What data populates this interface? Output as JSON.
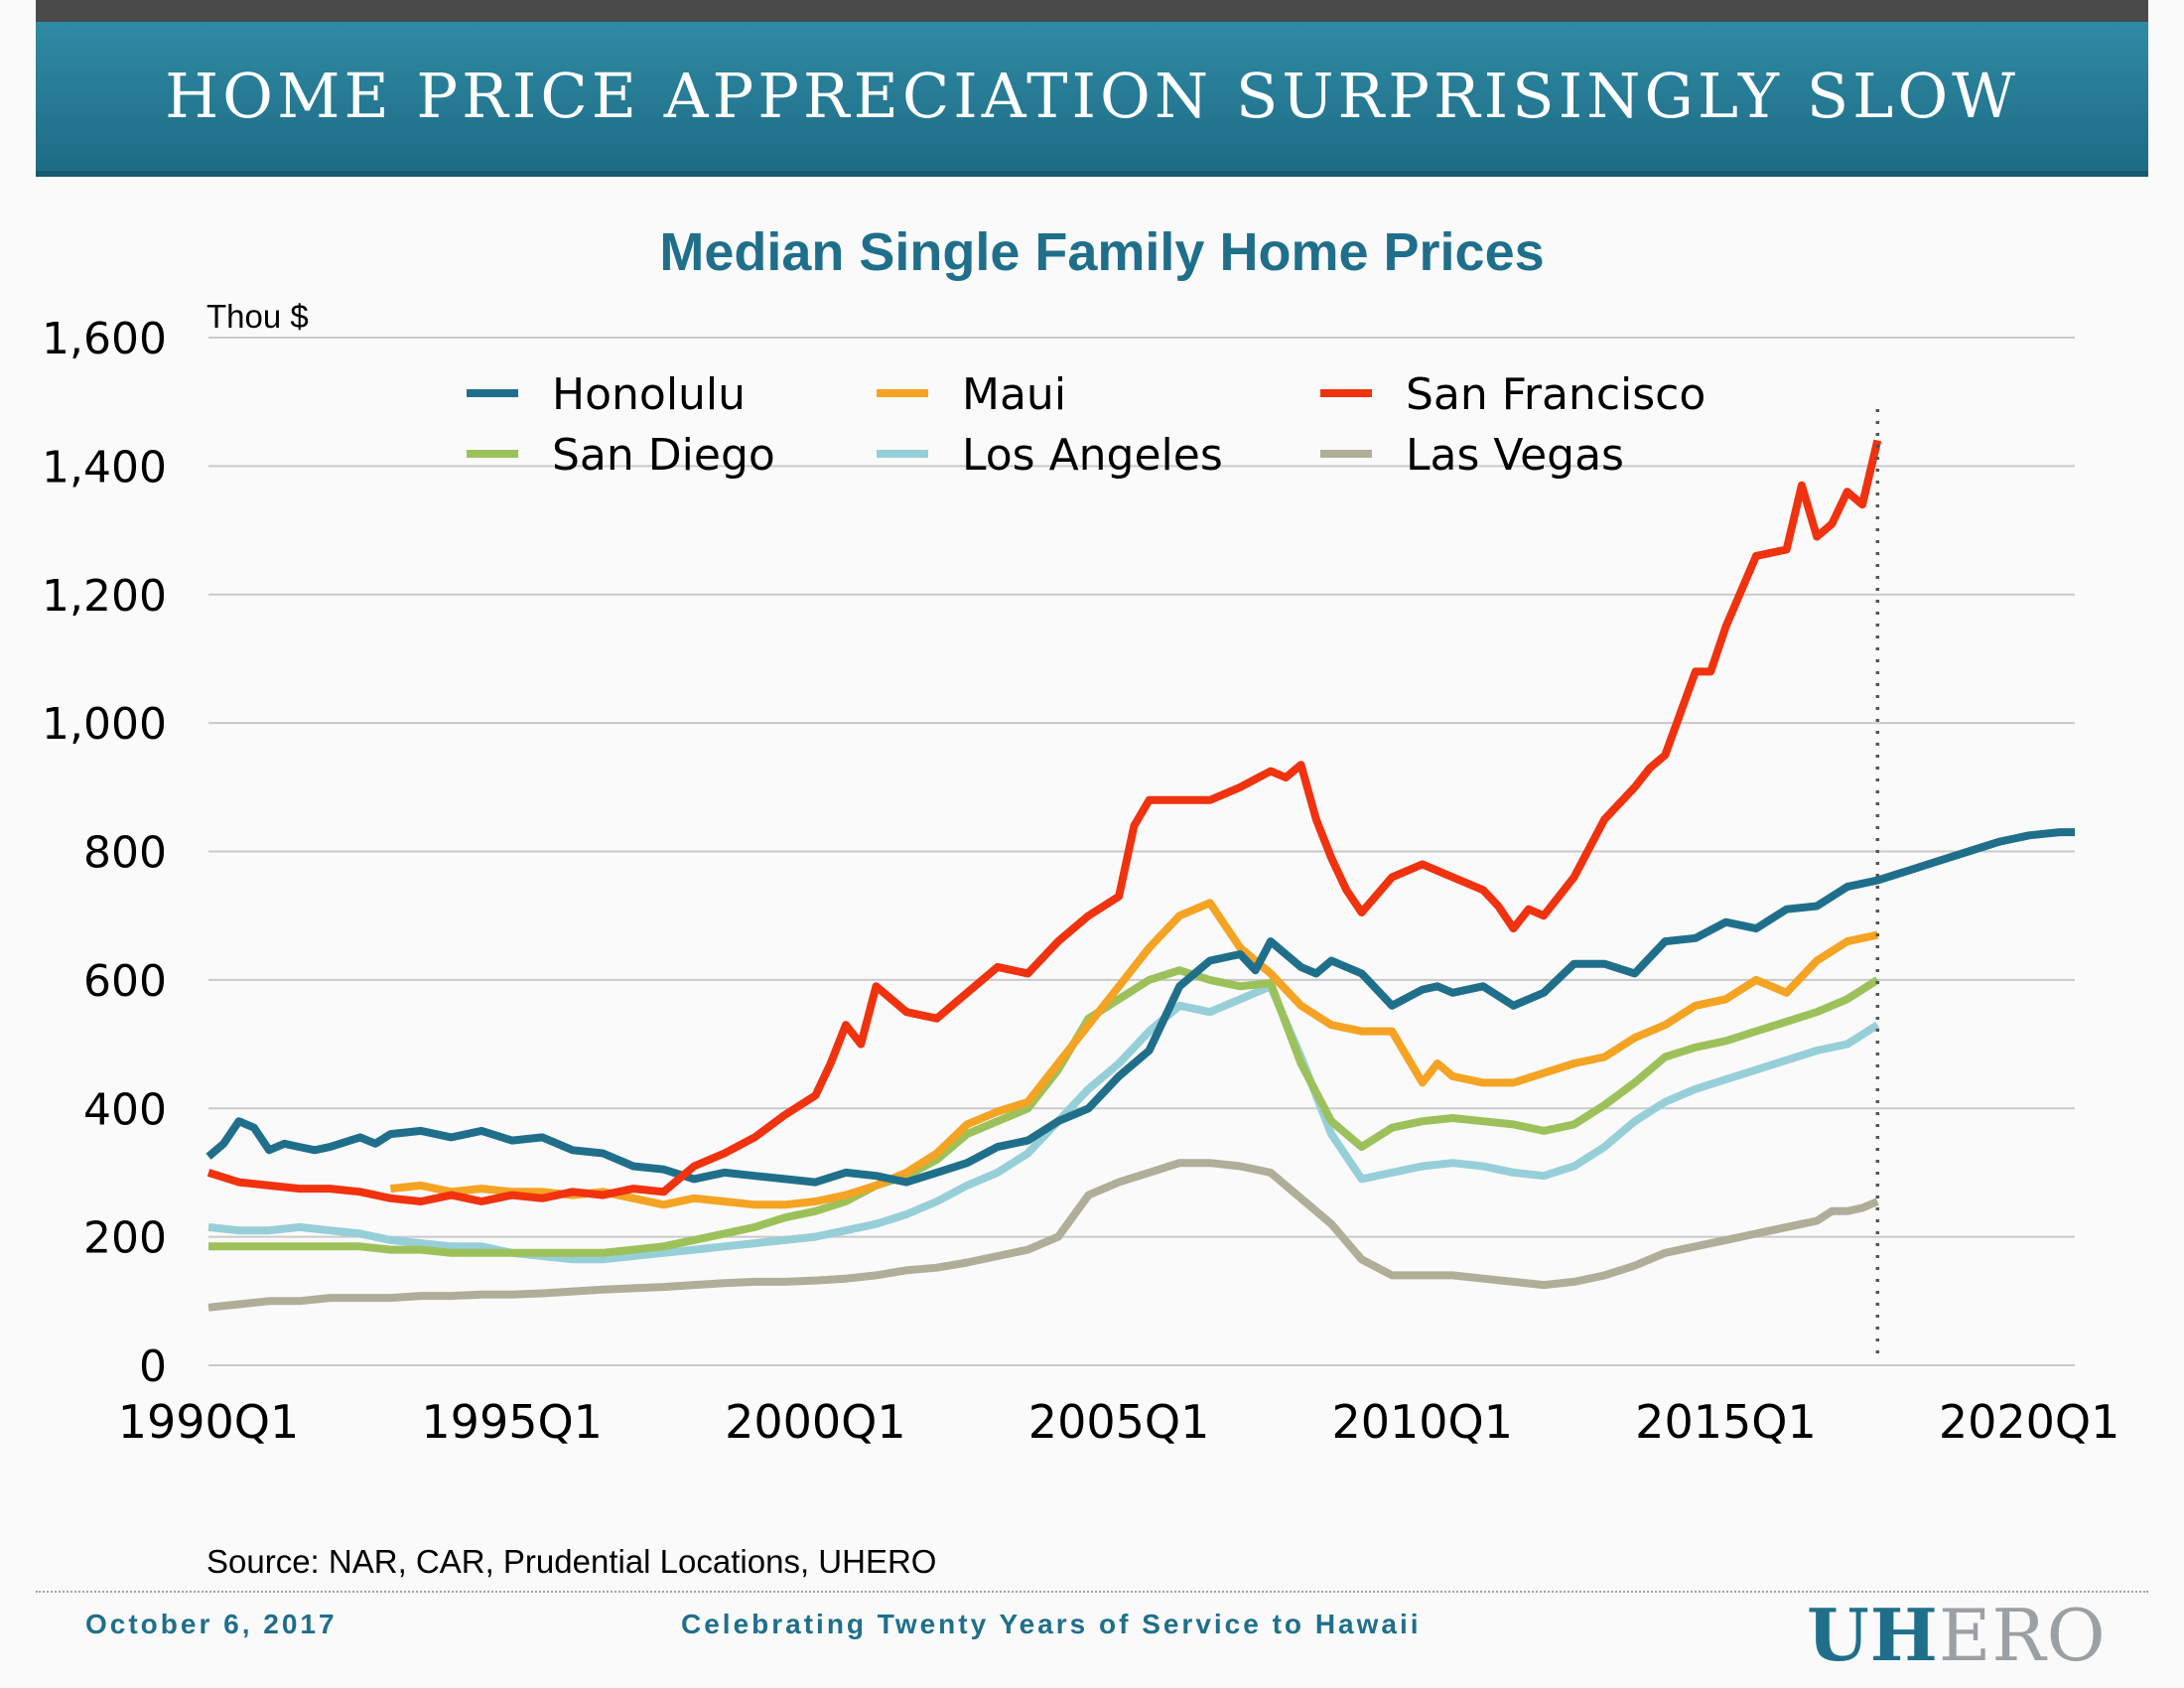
{
  "header": {
    "title": "HOME PRICE APPRECIATION SURPRISINGLY SLOW"
  },
  "source": "Source: NAR, CAR, Prudential Locations, UHERO",
  "footer": {
    "date": "October 6, 2017",
    "tagline": "Celebrating Twenty Years of Service to Hawaii",
    "logo_bold": "UH",
    "logo_light": "ERO"
  },
  "chart_data": {
    "type": "line",
    "title": "Median Single Family Home Prices",
    "ylabel": "Thou $",
    "xlabel": "",
    "ylim": [
      0,
      1600
    ],
    "xlim": [
      1990.0,
      2020.75
    ],
    "y_ticks": [
      0,
      200,
      400,
      600,
      800,
      1000,
      1200,
      1400,
      1600
    ],
    "y_tick_labels": [
      "0",
      "200",
      "400",
      "600",
      "800",
      "1,000",
      "1,200",
      "1,400",
      "1,600"
    ],
    "x_ticks": [
      1990,
      1995,
      2000,
      2005,
      2010,
      2015,
      2020
    ],
    "x_tick_labels": [
      "1990Q1",
      "1995Q1",
      "2000Q1",
      "2005Q1",
      "2010Q1",
      "2015Q1",
      "2020Q1"
    ],
    "forecast_start": 2017.5,
    "grid": "horizontal",
    "legend_position": "top-left, inside plot, 3 columns",
    "series": [
      {
        "name": "Honolulu",
        "color": "#1f6f8b",
        "solid_until": 2017.5,
        "x": [
          1990.0,
          1990.25,
          1990.5,
          1990.75,
          1991.0,
          1991.25,
          1991.5,
          1991.75,
          1992.0,
          1992.5,
          1992.75,
          1993.0,
          1993.5,
          1994.0,
          1994.5,
          1995.0,
          1995.5,
          1996.0,
          1996.5,
          1997.0,
          1997.5,
          1998.0,
          1998.5,
          1999.0,
          1999.5,
          2000.0,
          2000.5,
          2001.0,
          2001.5,
          2002.0,
          2002.5,
          2003.0,
          2003.5,
          2004.0,
          2004.5,
          2005.0,
          2005.5,
          2006.0,
          2006.5,
          2007.0,
          2007.25,
          2007.5,
          2008.0,
          2008.25,
          2008.5,
          2009.0,
          2009.5,
          2010.0,
          2010.25,
          2010.5,
          2011.0,
          2011.5,
          2012.0,
          2012.5,
          2013.0,
          2013.5,
          2014.0,
          2014.5,
          2015.0,
          2015.5,
          2016.0,
          2016.5,
          2017.0,
          2017.5,
          2018.0,
          2018.5,
          2019.0,
          2019.5,
          2020.0,
          2020.5,
          2020.75
        ],
        "values": [
          325,
          345,
          380,
          370,
          335,
          345,
          340,
          335,
          340,
          355,
          345,
          360,
          365,
          355,
          365,
          350,
          355,
          335,
          330,
          310,
          305,
          290,
          300,
          295,
          290,
          285,
          300,
          295,
          285,
          300,
          315,
          340,
          350,
          380,
          400,
          450,
          490,
          590,
          630,
          640,
          615,
          660,
          620,
          610,
          630,
          610,
          560,
          585,
          590,
          580,
          590,
          560,
          580,
          625,
          625,
          610,
          660,
          665,
          690,
          680,
          710,
          715,
          745,
          755,
          770,
          785,
          800,
          815,
          825,
          830,
          830
        ]
      },
      {
        "name": "Maui",
        "color": "#f4a323",
        "x": [
          1993.0,
          1993.5,
          1994.0,
          1994.5,
          1995.0,
          1995.5,
          1996.0,
          1996.5,
          1997.0,
          1997.5,
          1998.0,
          1998.5,
          1999.0,
          1999.5,
          2000.0,
          2000.5,
          2001.0,
          2001.5,
          2002.0,
          2002.5,
          2003.0,
          2003.5,
          2004.0,
          2004.5,
          2005.0,
          2005.5,
          2006.0,
          2006.5,
          2007.0,
          2007.5,
          2008.0,
          2008.5,
          2009.0,
          2009.5,
          2010.0,
          2010.25,
          2010.5,
          2011.0,
          2011.5,
          2012.0,
          2012.5,
          2013.0,
          2013.5,
          2014.0,
          2014.5,
          2015.0,
          2015.5,
          2016.0,
          2016.5,
          2017.0,
          2017.5
        ],
        "values": [
          275,
          280,
          270,
          275,
          270,
          270,
          265,
          270,
          260,
          250,
          260,
          255,
          250,
          250,
          255,
          265,
          280,
          300,
          330,
          375,
          395,
          410,
          470,
          530,
          590,
          650,
          700,
          720,
          650,
          610,
          560,
          530,
          520,
          520,
          440,
          470,
          450,
          440,
          440,
          455,
          470,
          480,
          510,
          530,
          560,
          570,
          600,
          580,
          630,
          660,
          670
        ]
      },
      {
        "name": "San Francisco",
        "color": "#f0320f",
        "x": [
          1990.0,
          1990.5,
          1991.0,
          1991.5,
          1992.0,
          1992.5,
          1993.0,
          1993.5,
          1994.0,
          1994.5,
          1995.0,
          1995.5,
          1996.0,
          1996.5,
          1997.0,
          1997.5,
          1998.0,
          1998.5,
          1999.0,
          1999.5,
          2000.0,
          2000.25,
          2000.5,
          2000.75,
          2001.0,
          2001.5,
          2002.0,
          2002.5,
          2003.0,
          2003.5,
          2004.0,
          2004.5,
          2005.0,
          2005.25,
          2005.5,
          2006.0,
          2006.5,
          2007.0,
          2007.5,
          2007.75,
          2008.0,
          2008.25,
          2008.5,
          2008.75,
          2009.0,
          2009.5,
          2010.0,
          2010.5,
          2011.0,
          2011.25,
          2011.5,
          2011.75,
          2012.0,
          2012.5,
          2013.0,
          2013.5,
          2013.75,
          2014.0,
          2014.5,
          2014.75,
          2015.0,
          2015.5,
          2016.0,
          2016.25,
          2016.5,
          2016.75,
          2017.0,
          2017.25,
          2017.5
        ],
        "values": [
          300,
          285,
          280,
          275,
          275,
          270,
          260,
          255,
          265,
          255,
          265,
          260,
          270,
          265,
          275,
          270,
          310,
          330,
          355,
          390,
          420,
          470,
          530,
          500,
          590,
          550,
          540,
          580,
          620,
          610,
          660,
          700,
          730,
          840,
          880,
          880,
          880,
          900,
          925,
          915,
          935,
          850,
          790,
          740,
          705,
          760,
          780,
          760,
          740,
          715,
          680,
          710,
          700,
          760,
          850,
          900,
          930,
          950,
          1080,
          1080,
          1150,
          1260,
          1270,
          1370,
          1290,
          1310,
          1360,
          1340,
          1440
        ]
      },
      {
        "name": "San Diego",
        "color": "#9cc15b",
        "x": [
          1990.0,
          1990.5,
          1991.0,
          1991.5,
          1992.0,
          1992.5,
          1993.0,
          1993.5,
          1994.0,
          1994.5,
          1995.0,
          1995.5,
          1996.0,
          1996.5,
          1997.0,
          1997.5,
          1998.0,
          1998.5,
          1999.0,
          1999.5,
          2000.0,
          2000.5,
          2001.0,
          2001.5,
          2002.0,
          2002.5,
          2003.0,
          2003.5,
          2004.0,
          2004.5,
          2005.0,
          2005.5,
          2006.0,
          2006.5,
          2007.0,
          2007.5,
          2008.0,
          2008.5,
          2009.0,
          2009.5,
          2010.0,
          2010.5,
          2011.0,
          2011.5,
          2012.0,
          2012.5,
          2013.0,
          2013.5,
          2014.0,
          2014.5,
          2015.0,
          2015.5,
          2016.0,
          2016.5,
          2017.0,
          2017.5
        ],
        "values": [
          185,
          185,
          185,
          185,
          185,
          185,
          180,
          180,
          175,
          175,
          175,
          175,
          175,
          175,
          180,
          185,
          195,
          205,
          215,
          230,
          240,
          255,
          280,
          295,
          320,
          360,
          380,
          400,
          460,
          540,
          570,
          600,
          615,
          600,
          590,
          595,
          470,
          380,
          340,
          370,
          380,
          385,
          380,
          375,
          365,
          375,
          405,
          440,
          480,
          495,
          505,
          520,
          535,
          550,
          570,
          600
        ]
      },
      {
        "name": "Los Angeles",
        "color": "#96cfd8",
        "x": [
          1990.0,
          1990.5,
          1991.0,
          1991.5,
          1992.0,
          1992.5,
          1993.0,
          1993.5,
          1994.0,
          1994.5,
          1995.0,
          1995.5,
          1996.0,
          1996.5,
          1997.0,
          1997.5,
          1998.0,
          1998.5,
          1999.0,
          1999.5,
          2000.0,
          2000.5,
          2001.0,
          2001.5,
          2002.0,
          2002.5,
          2003.0,
          2003.5,
          2004.0,
          2004.5,
          2005.0,
          2005.5,
          2006.0,
          2006.5,
          2007.0,
          2007.5,
          2008.0,
          2008.5,
          2009.0,
          2009.5,
          2010.0,
          2010.5,
          2011.0,
          2011.5,
          2012.0,
          2012.5,
          2013.0,
          2013.5,
          2014.0,
          2014.5,
          2015.0,
          2015.5,
          2016.0,
          2016.5,
          2017.0,
          2017.5
        ],
        "values": [
          215,
          210,
          210,
          215,
          210,
          205,
          195,
          190,
          185,
          185,
          175,
          170,
          165,
          165,
          170,
          175,
          180,
          185,
          190,
          195,
          200,
          210,
          220,
          235,
          255,
          280,
          300,
          330,
          380,
          430,
          470,
          520,
          560,
          550,
          570,
          590,
          480,
          360,
          290,
          300,
          310,
          315,
          310,
          300,
          295,
          310,
          340,
          380,
          410,
          430,
          445,
          460,
          475,
          490,
          500,
          530
        ]
      },
      {
        "name": "Las Vegas",
        "color": "#aeae99",
        "x": [
          1990.0,
          1990.5,
          1991.0,
          1991.5,
          1992.0,
          1992.5,
          1993.0,
          1993.5,
          1994.0,
          1994.5,
          1995.0,
          1995.5,
          1996.0,
          1996.5,
          1997.0,
          1997.5,
          1998.0,
          1998.5,
          1999.0,
          1999.5,
          2000.0,
          2000.5,
          2001.0,
          2001.5,
          2002.0,
          2002.5,
          2003.0,
          2003.5,
          2004.0,
          2004.5,
          2005.0,
          2005.5,
          2006.0,
          2006.5,
          2007.0,
          2007.5,
          2008.0,
          2008.5,
          2009.0,
          2009.5,
          2010.0,
          2010.5,
          2011.0,
          2011.5,
          2012.0,
          2012.5,
          2013.0,
          2013.5,
          2014.0,
          2014.5,
          2015.0,
          2015.5,
          2016.0,
          2016.25,
          2016.5,
          2016.75,
          2017.0,
          2017.25,
          2017.5
        ],
        "values": [
          90,
          95,
          100,
          100,
          105,
          105,
          105,
          108,
          108,
          110,
          110,
          112,
          115,
          118,
          120,
          122,
          125,
          128,
          130,
          130,
          132,
          135,
          140,
          148,
          152,
          160,
          170,
          180,
          200,
          265,
          285,
          300,
          315,
          315,
          310,
          300,
          260,
          220,
          165,
          140,
          140,
          140,
          135,
          130,
          125,
          130,
          140,
          155,
          175,
          185,
          195,
          205,
          215,
          220,
          225,
          240,
          240,
          245,
          255
        ]
      }
    ]
  }
}
